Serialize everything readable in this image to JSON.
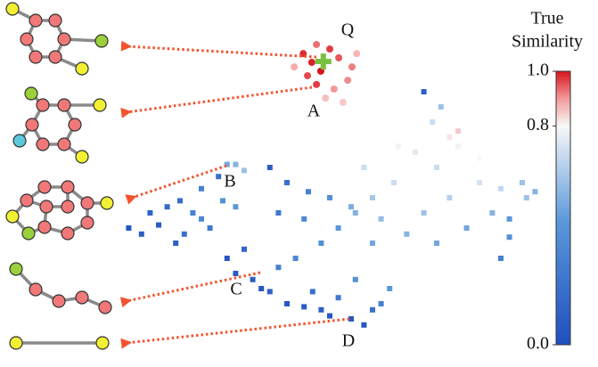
{
  "chart_data": {
    "type": "scatter",
    "xlim": [
      0,
      100
    ],
    "ylim": [
      0,
      100
    ],
    "series": [
      {
        "marker": "circle",
        "x": [
          43.8,
          45.8,
          47.9,
          50,
          52.1,
          55.2,
          46.9,
          51,
          44.8,
          41.7,
          54.2,
          49,
          56.3,
          46.9,
          53.1
        ],
        "y": [
          92.6,
          89.7,
          86.8,
          94.1,
          91.2,
          88.2,
          82.4,
          80.9,
          85.3,
          88.2,
          83.8,
          77.9,
          92.6,
          95.6,
          76.5
        ],
        "c": [
          0.98,
          0.99,
          1.0,
          0.97,
          0.95,
          0.92,
          0.97,
          0.9,
          0.96,
          0.88,
          0.91,
          0.86,
          0.87,
          0.93,
          0.85
        ]
      },
      {
        "marker": "square",
        "x": [
          70,
          75,
          80,
          85,
          90,
          95,
          78,
          65,
          72,
          60,
          88,
          82,
          68,
          75,
          92,
          62,
          55,
          58,
          66,
          85,
          3,
          6,
          10,
          12,
          15,
          18,
          20,
          22,
          8,
          25,
          28,
          16,
          24,
          26,
          28,
          30,
          20,
          14,
          26,
          28,
          32,
          34,
          36,
          40,
          44,
          48,
          50,
          55,
          58,
          60,
          62,
          46,
          52,
          38,
          42,
          30,
          56,
          64,
          40,
          45,
          50,
          38,
          44,
          52,
          48,
          36,
          56,
          60,
          72,
          76,
          74,
          78,
          80,
          96,
          98,
          92,
          90
        ],
        "y": [
          60,
          55,
          62,
          50,
          48,
          50,
          45,
          50,
          40,
          45,
          40,
          35,
          33,
          30,
          38,
          38,
          42,
          55,
          62,
          58,
          35,
          33,
          36,
          42,
          44,
          40,
          38,
          35,
          40,
          44,
          42,
          33,
          52,
          56,
          56,
          54,
          48,
          30,
          25,
          20,
          18,
          15,
          14,
          10,
          9,
          8,
          6,
          5,
          3,
          8,
          10,
          14,
          12,
          22,
          25,
          28,
          18,
          15,
          50,
          47,
          45,
          40,
          38,
          35,
          30,
          55,
          40,
          30,
          80,
          75,
          70,
          65,
          67,
          45,
          47,
          32,
          25
        ],
        "c": [
          0.75,
          0.7,
          0.78,
          0.72,
          0.68,
          0.6,
          0.65,
          0.7,
          0.6,
          0.62,
          0.55,
          0.5,
          0.55,
          0.5,
          0.45,
          0.58,
          0.52,
          0.7,
          0.78,
          0.8,
          0.05,
          0.1,
          0.08,
          0.15,
          0.2,
          0.3,
          0.35,
          0.25,
          0.12,
          0.4,
          0.45,
          0.2,
          0.2,
          0.5,
          0.55,
          0.6,
          0.3,
          0.1,
          0.05,
          0.08,
          0.1,
          0.05,
          0.12,
          0.05,
          0.08,
          0.1,
          0.06,
          0.05,
          0.04,
          0.2,
          0.3,
          0.2,
          0.25,
          0.3,
          0.35,
          0.15,
          0.4,
          0.45,
          0.2,
          0.3,
          0.4,
          0.25,
          0.35,
          0.45,
          0.4,
          0.1,
          0.55,
          0.5,
          0.1,
          0.6,
          0.7,
          0.82,
          0.85,
          0.6,
          0.55,
          0.4,
          0.3
        ]
      }
    ],
    "query": {
      "label": "Q",
      "x": 48.5,
      "y": 90,
      "color": "#7ac143"
    },
    "annotations": [
      "A",
      "B",
      "C",
      "D"
    ],
    "colorbar": {
      "title": [
        "True",
        "Similarity"
      ],
      "clim": [
        0,
        1
      ],
      "ticks": [
        {
          "value": 0,
          "label": "0.0"
        },
        0.8,
        {
          "value": 1,
          "label": "1.0"
        }
      ],
      "colormap": [
        {
          "value": 0,
          "color": "#1f4fbf"
        },
        {
          "value": 0.45,
          "color": "#5a98da"
        },
        {
          "value": 0.8,
          "color": "#f8f8f8"
        },
        {
          "value": 0.9,
          "color": "#f39a9a"
        },
        {
          "value": 1,
          "color": "#d8121c"
        }
      ]
    }
  }
}
